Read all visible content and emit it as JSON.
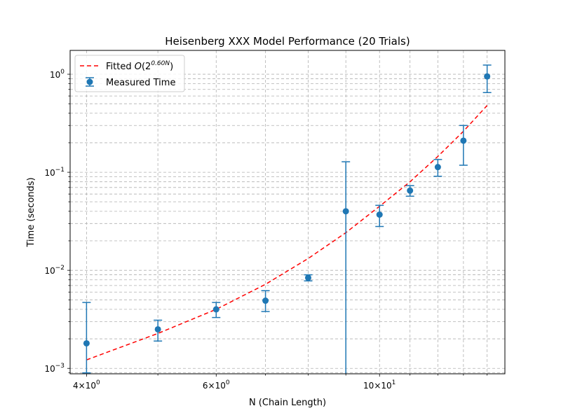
{
  "chart_data": {
    "type": "scatter",
    "title": "Heisenberg XXX Model Performance (20 Trials)",
    "xlabel": "N (Chain Length)",
    "ylabel": "Time (seconds)",
    "xscale": "log",
    "yscale": "log",
    "xlim": [
      3.8,
      14.8
    ],
    "ylim": [
      0.00088,
      1.75
    ],
    "grid": true,
    "legend": "top-left",
    "x_ticks": [
      {
        "value": 4,
        "base": "4",
        "exp": "0"
      },
      {
        "value": 6,
        "base": "6",
        "exp": "0"
      },
      {
        "value": 10,
        "base": "10",
        "exp": "1"
      }
    ],
    "y_ticks": [
      {
        "value": 0.001,
        "base": "10",
        "exp": "−3"
      },
      {
        "value": 0.01,
        "base": "10",
        "exp": "−2"
      },
      {
        "value": 0.1,
        "base": "10",
        "exp": "−1"
      },
      {
        "value": 1,
        "base": "10",
        "exp": "0"
      }
    ],
    "series": [
      {
        "name": "Measured Time",
        "kind": "errorbar",
        "color": "#1f77b4",
        "x": [
          4,
          5,
          6,
          7,
          8,
          9,
          10,
          11,
          12,
          13,
          14
        ],
        "y": [
          0.0018,
          0.0025,
          0.004,
          0.0049,
          0.0084,
          0.04,
          0.037,
          0.065,
          0.113,
          0.21,
          0.95
        ],
        "yerr_low": [
          0.0009,
          0.0019,
          0.0033,
          0.0038,
          0.0078,
          0.0005,
          0.028,
          0.057,
          0.091,
          0.118,
          0.65
        ],
        "yerr_high": [
          0.0047,
          0.0031,
          0.0047,
          0.0062,
          0.009,
          0.128,
          0.046,
          0.073,
          0.135,
          0.3,
          1.24
        ]
      },
      {
        "name": "Fitted",
        "name_sup": "0.60N",
        "kind": "line",
        "color": "#ff0000",
        "dash": "6,4",
        "x": [
          4,
          5,
          6,
          7,
          8,
          9,
          10,
          11,
          12,
          13,
          14
        ],
        "y": [
          0.00122,
          0.00227,
          0.004,
          0.0072,
          0.0132,
          0.0242,
          0.045,
          0.08,
          0.145,
          0.262,
          0.48
        ]
      }
    ]
  }
}
